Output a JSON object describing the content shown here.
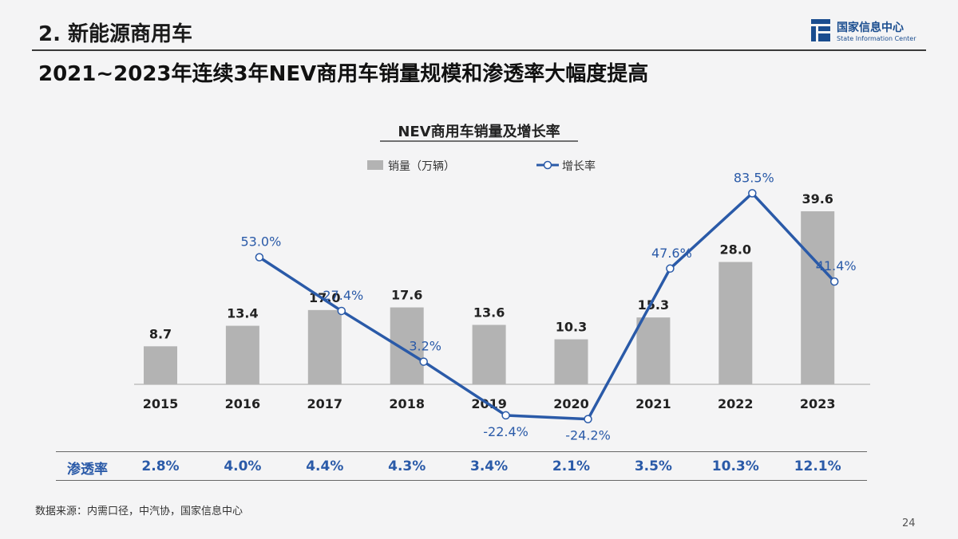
{
  "header": {
    "section_title": "2. 新能源商用车",
    "main_title": "2021~2023年连续3年NEV商用车销量规模和渗透率大幅度提高",
    "logo_cn": "国家信息中心",
    "logo_en": "State Information Center"
  },
  "chart_data": {
    "type": "bar",
    "title": "NEV商用车销量及增长率",
    "categories": [
      "2015",
      "2016",
      "2017",
      "2018",
      "2019",
      "2020",
      "2021",
      "2022",
      "2023"
    ],
    "series": [
      {
        "name": "销量（万辆）",
        "type": "bar",
        "color": "#b3b3b3",
        "values": [
          8.7,
          13.4,
          17.0,
          17.6,
          13.6,
          10.3,
          15.3,
          28.0,
          39.6
        ],
        "labels": [
          "8.7",
          "13.4",
          "17.0",
          "17.6",
          "13.6",
          "10.3",
          "15.3",
          "28.0",
          "39.6"
        ]
      },
      {
        "name": "增长率",
        "type": "line",
        "color": "#2a5aa8",
        "values": [
          null,
          53.0,
          27.4,
          3.2,
          -22.4,
          -24.2,
          47.6,
          83.5,
          41.4
        ],
        "labels": [
          "",
          "53.0%",
          "27.4%",
          "3.2%",
          "-22.4%",
          "-24.2%",
          "47.6%",
          "83.5%",
          "41.4%"
        ]
      }
    ],
    "legend_position": "top-center",
    "grid": false
  },
  "penetration": {
    "label": "渗透率",
    "values": [
      "2.8%",
      "4.0%",
      "4.4%",
      "4.3%",
      "3.4%",
      "2.1%",
      "3.5%",
      "10.3%",
      "12.1%"
    ]
  },
  "footer": {
    "source": "数据来源：内需口径，中汽协，国家信息中心",
    "page_number": "24"
  }
}
